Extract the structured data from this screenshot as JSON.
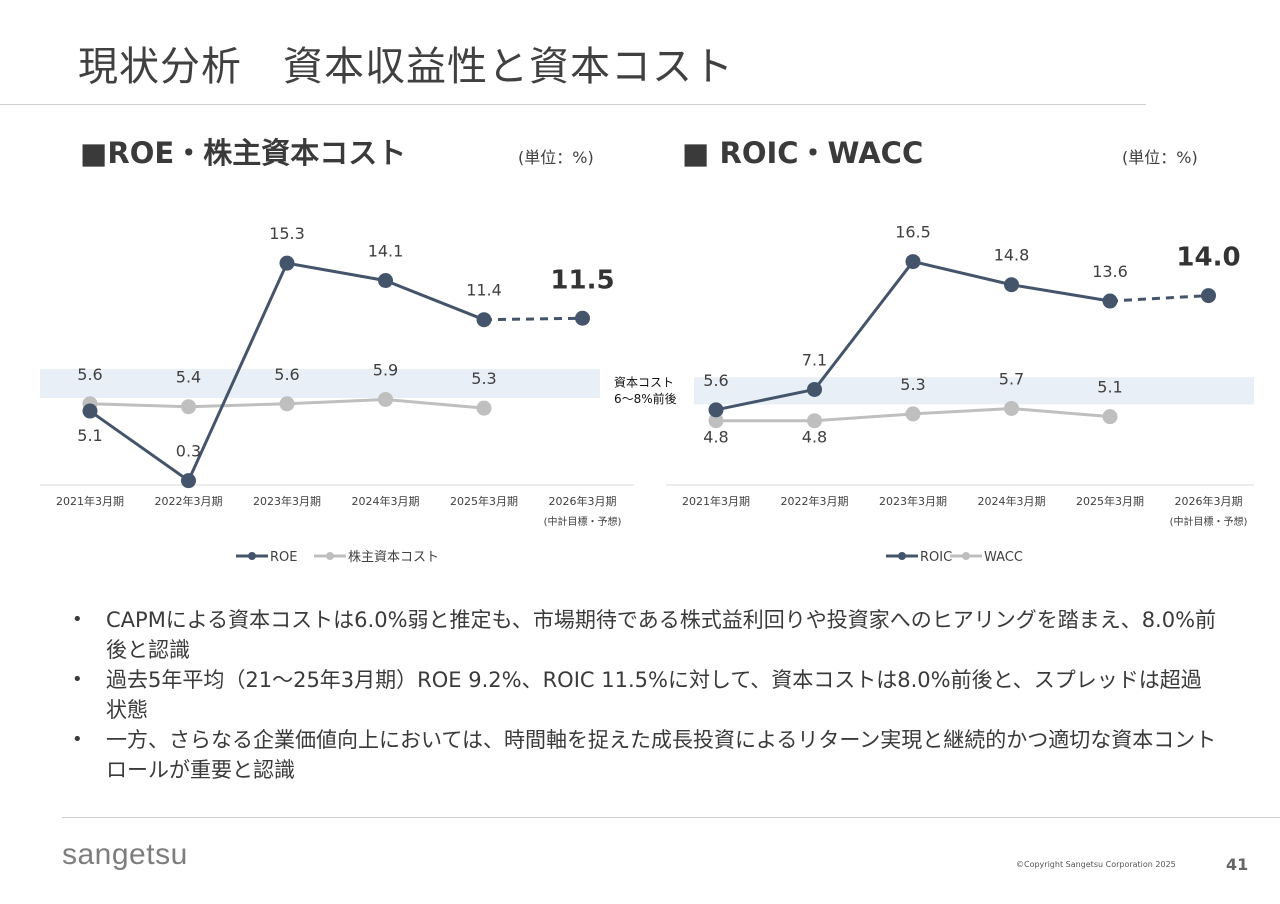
{
  "page": {
    "title": "現状分析　資本収益性と資本コスト",
    "copyright": "©Copyright Sangetsu Corporation 2025",
    "page_number": "41",
    "logo": "sangetsu"
  },
  "colors": {
    "main_series": "#44546a",
    "cost_series": "#bfbfbf",
    "cost_band": "#e9eff7",
    "axis": "#d9d9d9"
  },
  "left": {
    "section_title": "■ROE・株主資本コスト",
    "unit": "(単位：%)"
  },
  "right": {
    "section_title": "■ ROIC・WACC",
    "unit": "(単位：%)",
    "band_label": [
      "資本コスト",
      "6～8%前後"
    ]
  },
  "bullets": [
    "CAPMによる資本コストは6.0%弱と推定も、市場期待である株式益利回りや投資家へのヒアリングを踏まえ、8.0%前後と認識",
    "過去5年平均（21～25年3月期）ROE 9.2%、ROIC 11.5%に対して、資本コストは8.0%前後と、スプレッドは超過状態",
    "一方、さらなる企業価値向上においては、時間軸を捉えた成長投資によるリターン実現と継続的かつ適切な資本コントロールが重要と認識"
  ],
  "chart_data": [
    {
      "type": "line",
      "categories": [
        "2021年3月期",
        "2022年3月期",
        "2023年3月期",
        "2024年3月期",
        "2025年3月期",
        "2026年3月期"
      ],
      "category_sublabel": {
        "2026年3月期": "(中計目標・予想)"
      },
      "series": [
        {
          "name": "ROE",
          "values": [
            5.1,
            0.3,
            15.3,
            14.1,
            11.4,
            11.5
          ],
          "dashed_last_segment": true,
          "highlight_last": true
        },
        {
          "name": "株主資本コスト",
          "values": [
            5.6,
            5.4,
            5.6,
            5.9,
            5.3,
            null
          ]
        }
      ],
      "band": {
        "from": 6,
        "to": 8
      },
      "legend": "bottom",
      "grid": false
    },
    {
      "type": "line",
      "categories": [
        "2021年3月期",
        "2022年3月期",
        "2023年3月期",
        "2024年3月期",
        "2025年3月期",
        "2026年3月期"
      ],
      "category_sublabel": {
        "2026年3月期": "(中計目標・予想)"
      },
      "series": [
        {
          "name": "ROIC",
          "values": [
            5.6,
            7.1,
            16.5,
            14.8,
            13.6,
            14.0
          ],
          "dashed_last_segment": true,
          "highlight_last": true
        },
        {
          "name": "WACC",
          "values": [
            4.8,
            4.8,
            5.3,
            5.7,
            5.1,
            null
          ]
        }
      ],
      "band": {
        "from": 6,
        "to": 8
      },
      "legend": "bottom",
      "grid": false
    }
  ]
}
